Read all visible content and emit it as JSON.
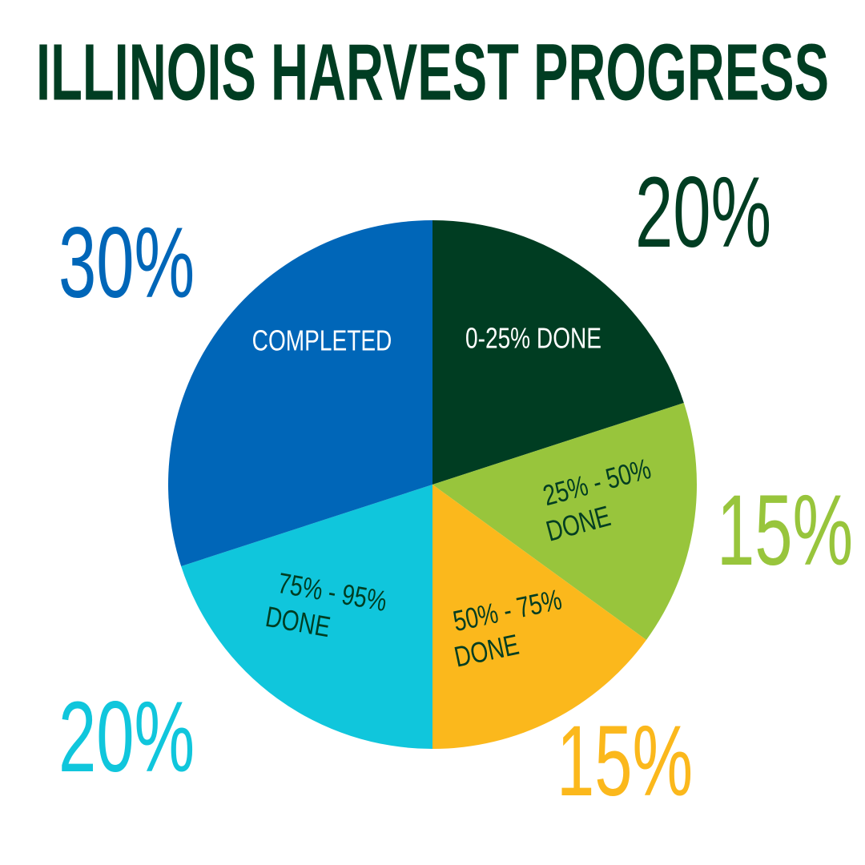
{
  "chart_data": {
    "type": "pie",
    "title": "ILLINOIS HARVEST PROGRESS",
    "categories": [
      "0-25% DONE",
      "25% - 50% DONE",
      "50% - 75% DONE",
      "75% - 95% DONE",
      "COMPLETED"
    ],
    "values": [
      20,
      15,
      15,
      20,
      30
    ],
    "value_labels": [
      "20%",
      "15%",
      "15%",
      "20%",
      "30%"
    ],
    "colors": [
      "#003d22",
      "#98c53c",
      "#fbb81c",
      "#10c6dc",
      "#0066b8"
    ]
  }
}
